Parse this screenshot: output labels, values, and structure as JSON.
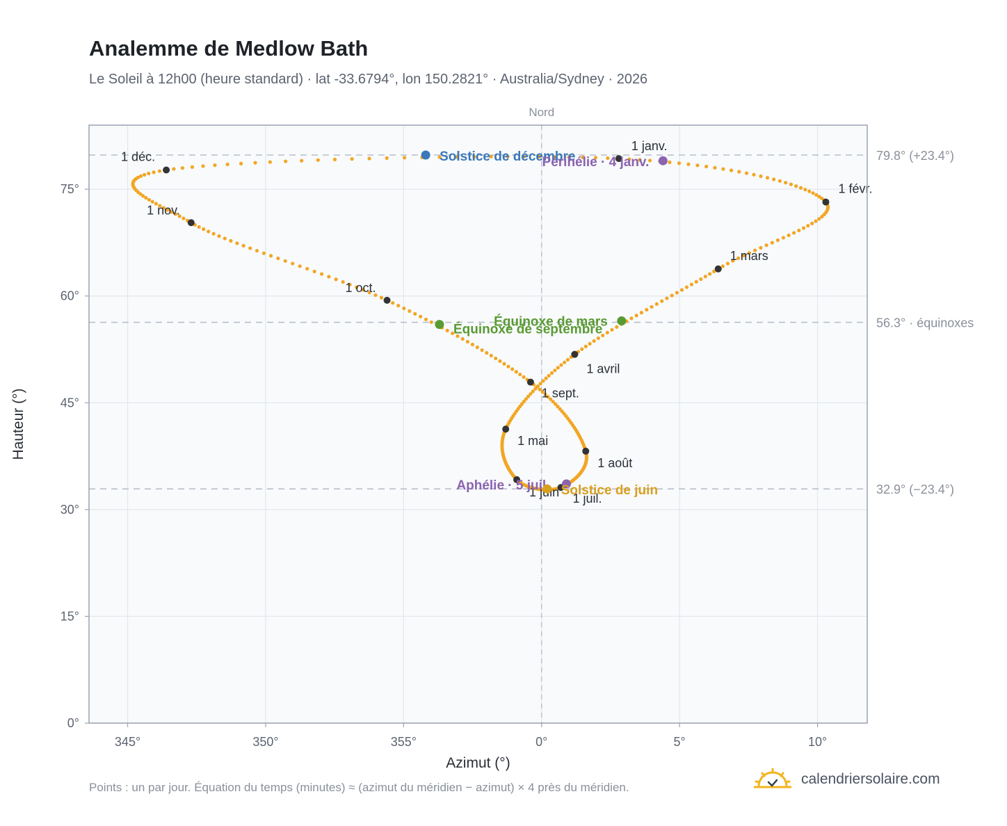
{
  "title": "Analemme de Medlow Bath",
  "subtitle": "Le Soleil à 12h00 (heure standard) · lat -33.6794°, lon 150.2821° · Australia/Sydney · 2026",
  "footnote": "Points : un par jour. Équation du temps (minutes) ≈ (azimut du méridien − azimut) × 4 près du méridien.",
  "brand": {
    "name": "calendriersolaire.com",
    "icon": "sun-icon",
    "color": "#f2b51e"
  },
  "colors": {
    "curve": "#f2a623",
    "month_dot": "#333333",
    "solstice_dec": "#3a78b8",
    "solstice_jun": "#d9a01e",
    "equinox": "#5a9a32",
    "apsis": "#8b63b0",
    "plot_bg": "#f8fafc",
    "grid": "#e3e7ed",
    "ref_line": "#b8bfc9"
  },
  "chart_data": {
    "type": "scatter",
    "xlabel": "Azimut (°)",
    "ylabel": "Hauteur (°)",
    "xlim": [
      343.6,
      11.8
    ],
    "ylim": [
      0,
      84
    ],
    "x_ticks": [
      345,
      350,
      355,
      0,
      5,
      10
    ],
    "x_tick_labels": [
      "345°",
      "350°",
      "355°",
      "0°",
      "5°",
      "10°"
    ],
    "y_ticks": [
      0,
      15,
      30,
      45,
      60,
      75
    ],
    "y_tick_labels": [
      "0°",
      "15°",
      "30°",
      "45°",
      "60°",
      "75°"
    ],
    "grid": true,
    "north": {
      "azimuth": 0,
      "label": "Nord"
    },
    "reference_lines": [
      {
        "altitude": 79.8,
        "label": "79.8° (+23.4°)"
      },
      {
        "altitude": 56.3,
        "label": "56.3° · équinoxes"
      },
      {
        "altitude": 32.9,
        "label": "32.9° (−23.4°)"
      }
    ],
    "series_description": "Points : un par jour",
    "curve_anchors": [
      {
        "day": 1,
        "az": 2.8,
        "alt": 79.3
      },
      {
        "day": 32,
        "az": 10.3,
        "alt": 73.2
      },
      {
        "day": 60,
        "az": 6.4,
        "alt": 63.8
      },
      {
        "day": 91,
        "az": 1.2,
        "alt": 51.8
      },
      {
        "day": 121,
        "az": -1.3,
        "alt": 41.3
      },
      {
        "day": 152,
        "az": -0.9,
        "alt": 34.2
      },
      {
        "day": 182,
        "az": 0.7,
        "alt": 33.1
      },
      {
        "day": 213,
        "az": 1.6,
        "alt": 38.2
      },
      {
        "day": 244,
        "az": -0.4,
        "alt": 47.9
      },
      {
        "day": 274,
        "az": -5.6,
        "alt": 59.4
      },
      {
        "day": 305,
        "az": -12.7,
        "alt": 70.3
      },
      {
        "day": 335,
        "az": -13.6,
        "alt": 77.7
      },
      {
        "day": 366,
        "az": 2.8,
        "alt": 79.3
      }
    ],
    "month_points": [
      {
        "label": "1 janv.",
        "az": 2.8,
        "alt": 79.3
      },
      {
        "label": "1 févr.",
        "az": 10.3,
        "alt": 73.2
      },
      {
        "label": "1 mars",
        "az": 6.4,
        "alt": 63.8
      },
      {
        "label": "1 avril",
        "az": 1.2,
        "alt": 51.8
      },
      {
        "label": "1 mai",
        "az": -1.3,
        "alt": 41.3
      },
      {
        "label": "1 juin",
        "az": -0.9,
        "alt": 34.2
      },
      {
        "label": "1 juil.",
        "az": 0.7,
        "alt": 33.1
      },
      {
        "label": "1 août",
        "az": 1.6,
        "alt": 38.2
      },
      {
        "label": "1 sept.",
        "az": -0.4,
        "alt": 47.9
      },
      {
        "label": "1 oct.",
        "az": -5.6,
        "alt": 59.4
      },
      {
        "label": "1 nov.",
        "az": -12.7,
        "alt": 70.3
      },
      {
        "label": "1 déc.",
        "az": -13.6,
        "alt": 77.7
      }
    ],
    "events": [
      {
        "label": "Solstice de décembre",
        "az": -4.2,
        "alt": 79.8,
        "color": "#3a78b8"
      },
      {
        "label": "Périhélie · 4 janv.",
        "az": 4.4,
        "alt": 79.0,
        "color": "#8b63b0"
      },
      {
        "label": "Équinoxe de mars",
        "az": 2.9,
        "alt": 56.5,
        "color": "#5a9a32"
      },
      {
        "label": "Équinoxe de septembre",
        "az": -3.7,
        "alt": 56.0,
        "color": "#5a9a32"
      },
      {
        "label": "Aphélie · 5 juil.",
        "az": 0.9,
        "alt": 33.6,
        "color": "#8b63b0"
      },
      {
        "label": "Solstice de juin",
        "az": 0.2,
        "alt": 32.9,
        "color": "#d9a01e"
      }
    ]
  }
}
